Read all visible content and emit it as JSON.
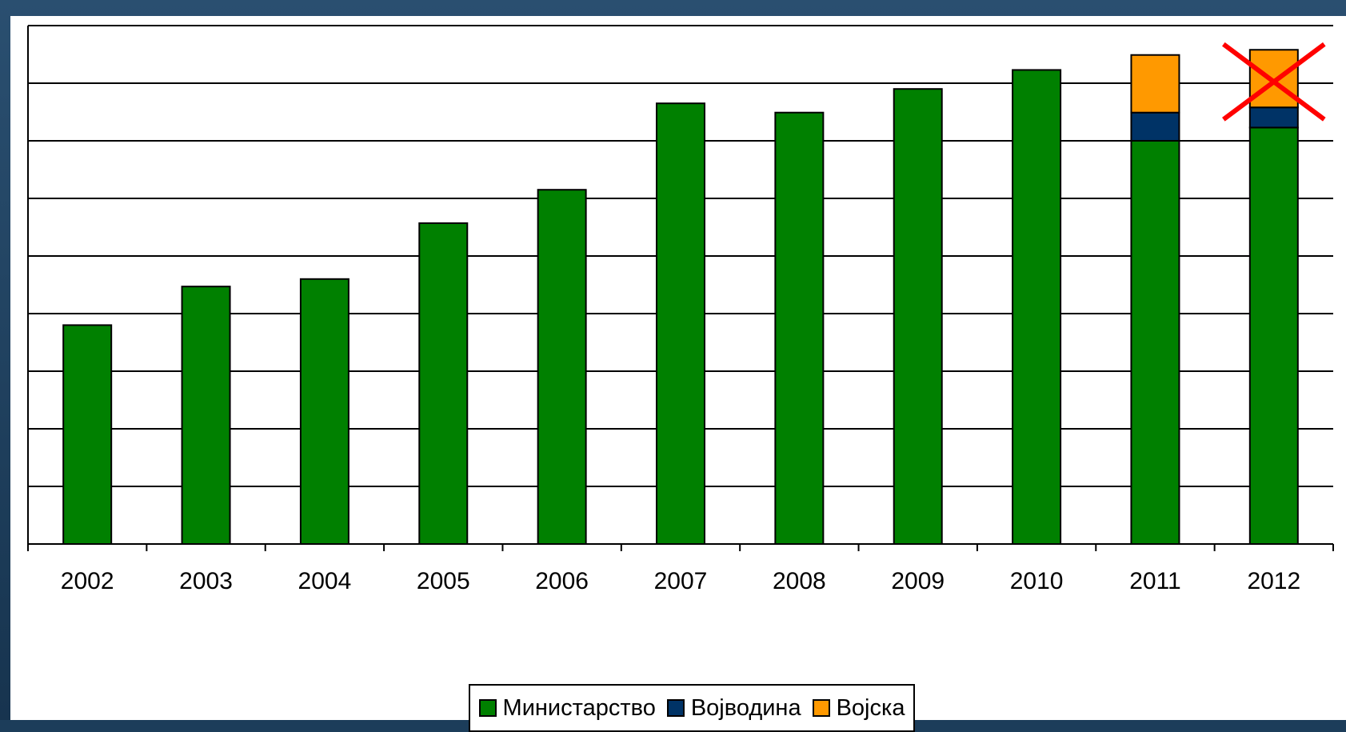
{
  "chart_data": {
    "type": "bar",
    "stacked": true,
    "categories": [
      "2002",
      "2003",
      "2004",
      "2005",
      "2006",
      "2007",
      "2008",
      "2009",
      "2010",
      "2011",
      "2012"
    ],
    "series": [
      {
        "name": "Министарство",
        "color": "#008000",
        "values": [
          3.8,
          4.47,
          4.6,
          5.57,
          6.15,
          7.65,
          7.49,
          7.9,
          8.23,
          7.0,
          7.23
        ]
      },
      {
        "name": "Војводина",
        "color": "#003366",
        "values": [
          0,
          0,
          0,
          0,
          0,
          0,
          0,
          0,
          0,
          0.49,
          0.35
        ]
      },
      {
        "name": "Војска",
        "color": "#ff9900",
        "values": [
          0,
          0,
          0,
          0,
          0,
          0,
          0,
          0,
          0,
          1.0,
          1.0
        ]
      }
    ],
    "ylim": [
      0,
      9
    ],
    "y_gridlines": 9,
    "y_tick_labels_shown": false,
    "grid": true,
    "legend_position": "bottom",
    "annotation": {
      "type": "red-cross",
      "category": "2012"
    }
  }
}
